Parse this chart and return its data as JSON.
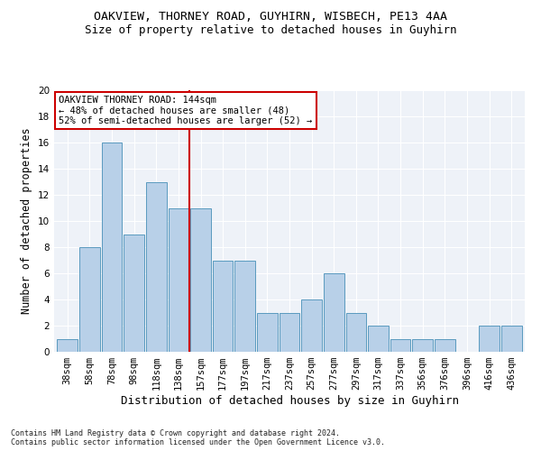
{
  "title1": "OAKVIEW, THORNEY ROAD, GUYHIRN, WISBECH, PE13 4AA",
  "title2": "Size of property relative to detached houses in Guyhirn",
  "xlabel": "Distribution of detached houses by size in Guyhirn",
  "ylabel": "Number of detached properties",
  "categories": [
    "38sqm",
    "58sqm",
    "78sqm",
    "98sqm",
    "118sqm",
    "138sqm",
    "157sqm",
    "177sqm",
    "197sqm",
    "217sqm",
    "237sqm",
    "257sqm",
    "277sqm",
    "297sqm",
    "317sqm",
    "337sqm",
    "356sqm",
    "376sqm",
    "396sqm",
    "416sqm",
    "436sqm"
  ],
  "values": [
    1,
    8,
    16,
    9,
    13,
    11,
    11,
    7,
    7,
    3,
    3,
    4,
    6,
    3,
    2,
    1,
    1,
    1,
    0,
    2,
    2
  ],
  "bar_color": "#b8d0e8",
  "bar_edge_color": "#5a9abf",
  "vline_x_index": 5.5,
  "vline_color": "#cc0000",
  "annotation_line1": "OAKVIEW THORNEY ROAD: 144sqm",
  "annotation_line2": "← 48% of detached houses are smaller (48)",
  "annotation_line3": "52% of semi-detached houses are larger (52) →",
  "annotation_box_color": "#ffffff",
  "annotation_box_edge": "#cc0000",
  "ylim": [
    0,
    20
  ],
  "yticks": [
    0,
    2,
    4,
    6,
    8,
    10,
    12,
    14,
    16,
    18,
    20
  ],
  "footnote": "Contains HM Land Registry data © Crown copyright and database right 2024.\nContains public sector information licensed under the Open Government Licence v3.0.",
  "bg_color": "#eef2f8",
  "title_fontsize": 9.5,
  "subtitle_fontsize": 9,
  "xlabel_fontsize": 9,
  "ylabel_fontsize": 8.5,
  "tick_fontsize": 7.5,
  "annotation_fontsize": 7.5,
  "footnote_fontsize": 6
}
